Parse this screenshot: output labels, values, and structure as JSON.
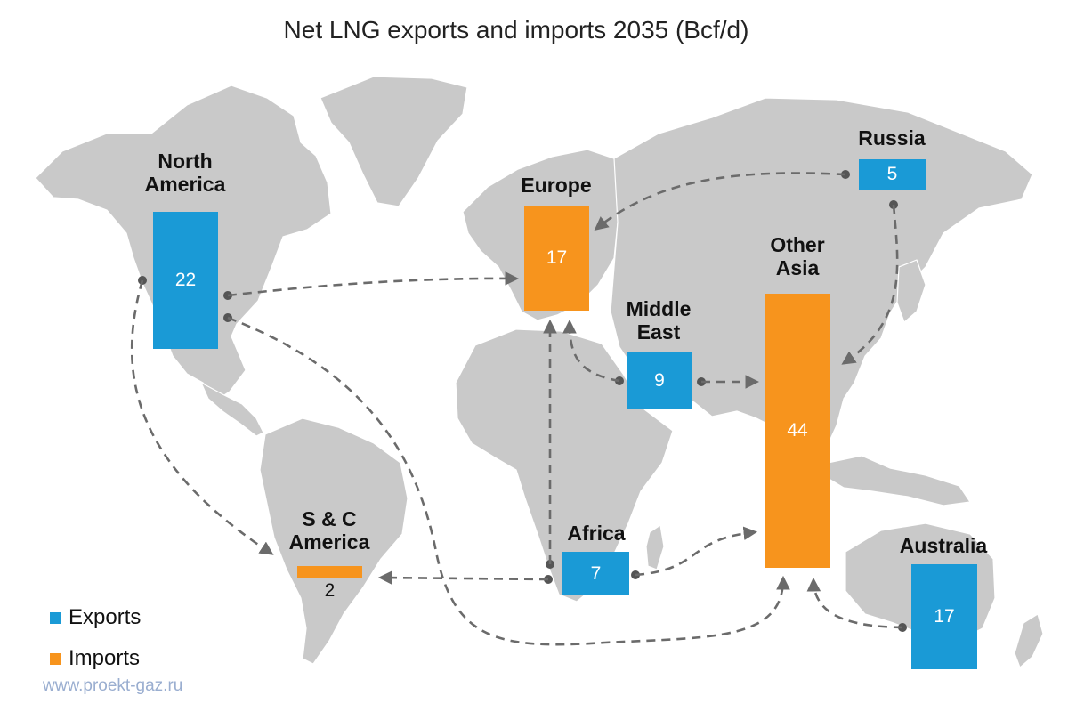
{
  "title": "Net LNG exports and imports 2035 (Bcf/d)",
  "colors": {
    "exports": "#1a9ad6",
    "imports": "#f7941d",
    "land": "#c9c9c9",
    "arrow": "#6b6b6b"
  },
  "legend": [
    {
      "label": "Exports",
      "color": "#1a9ad6"
    },
    {
      "label": "Imports",
      "color": "#f7941d"
    }
  ],
  "regions": [
    {
      "id": "north-america",
      "label": "North America",
      "label_lines": [
        "North",
        "America"
      ],
      "value": 22,
      "value_text": "22",
      "type": "export"
    },
    {
      "id": "europe",
      "label": "Europe",
      "label_lines": [
        "Europe"
      ],
      "value": 17,
      "value_text": "17",
      "type": "import"
    },
    {
      "id": "russia",
      "label": "Russia",
      "label_lines": [
        "Russia"
      ],
      "value": 5,
      "value_text": "5",
      "type": "export"
    },
    {
      "id": "middle-east",
      "label": "Middle East",
      "label_lines": [
        "Middle",
        "East"
      ],
      "value": 9,
      "value_text": "9",
      "type": "export"
    },
    {
      "id": "other-asia",
      "label": "Other Asia",
      "label_lines": [
        "Other",
        "Asia"
      ],
      "value": 44,
      "value_text": "44",
      "type": "import"
    },
    {
      "id": "africa",
      "label": "Africa",
      "label_lines": [
        "Africa"
      ],
      "value": 7,
      "value_text": "7",
      "type": "export"
    },
    {
      "id": "sc-america",
      "label": "S & C America",
      "label_lines": [
        "S & C",
        "America"
      ],
      "value": 2,
      "value_text": "2",
      "type": "import"
    },
    {
      "id": "australia",
      "label": "Australia",
      "label_lines": [
        "Australia"
      ],
      "value": 17,
      "value_text": "17",
      "type": "export"
    }
  ],
  "flows": [
    {
      "from": "North America",
      "to": "Europe"
    },
    {
      "from": "North America",
      "to": "S & C America"
    },
    {
      "from": "North America",
      "to": "Other Asia"
    },
    {
      "from": "Russia",
      "to": "Europe"
    },
    {
      "from": "Russia",
      "to": "Other Asia"
    },
    {
      "from": "Middle East",
      "to": "Europe"
    },
    {
      "from": "Middle East",
      "to": "Other Asia"
    },
    {
      "from": "Africa",
      "to": "Europe"
    },
    {
      "from": "Africa",
      "to": "S & C America"
    },
    {
      "from": "Africa",
      "to": "Other Asia"
    },
    {
      "from": "Australia",
      "to": "Other Asia"
    }
  ],
  "watermark": "www.proekt-gaz.ru"
}
